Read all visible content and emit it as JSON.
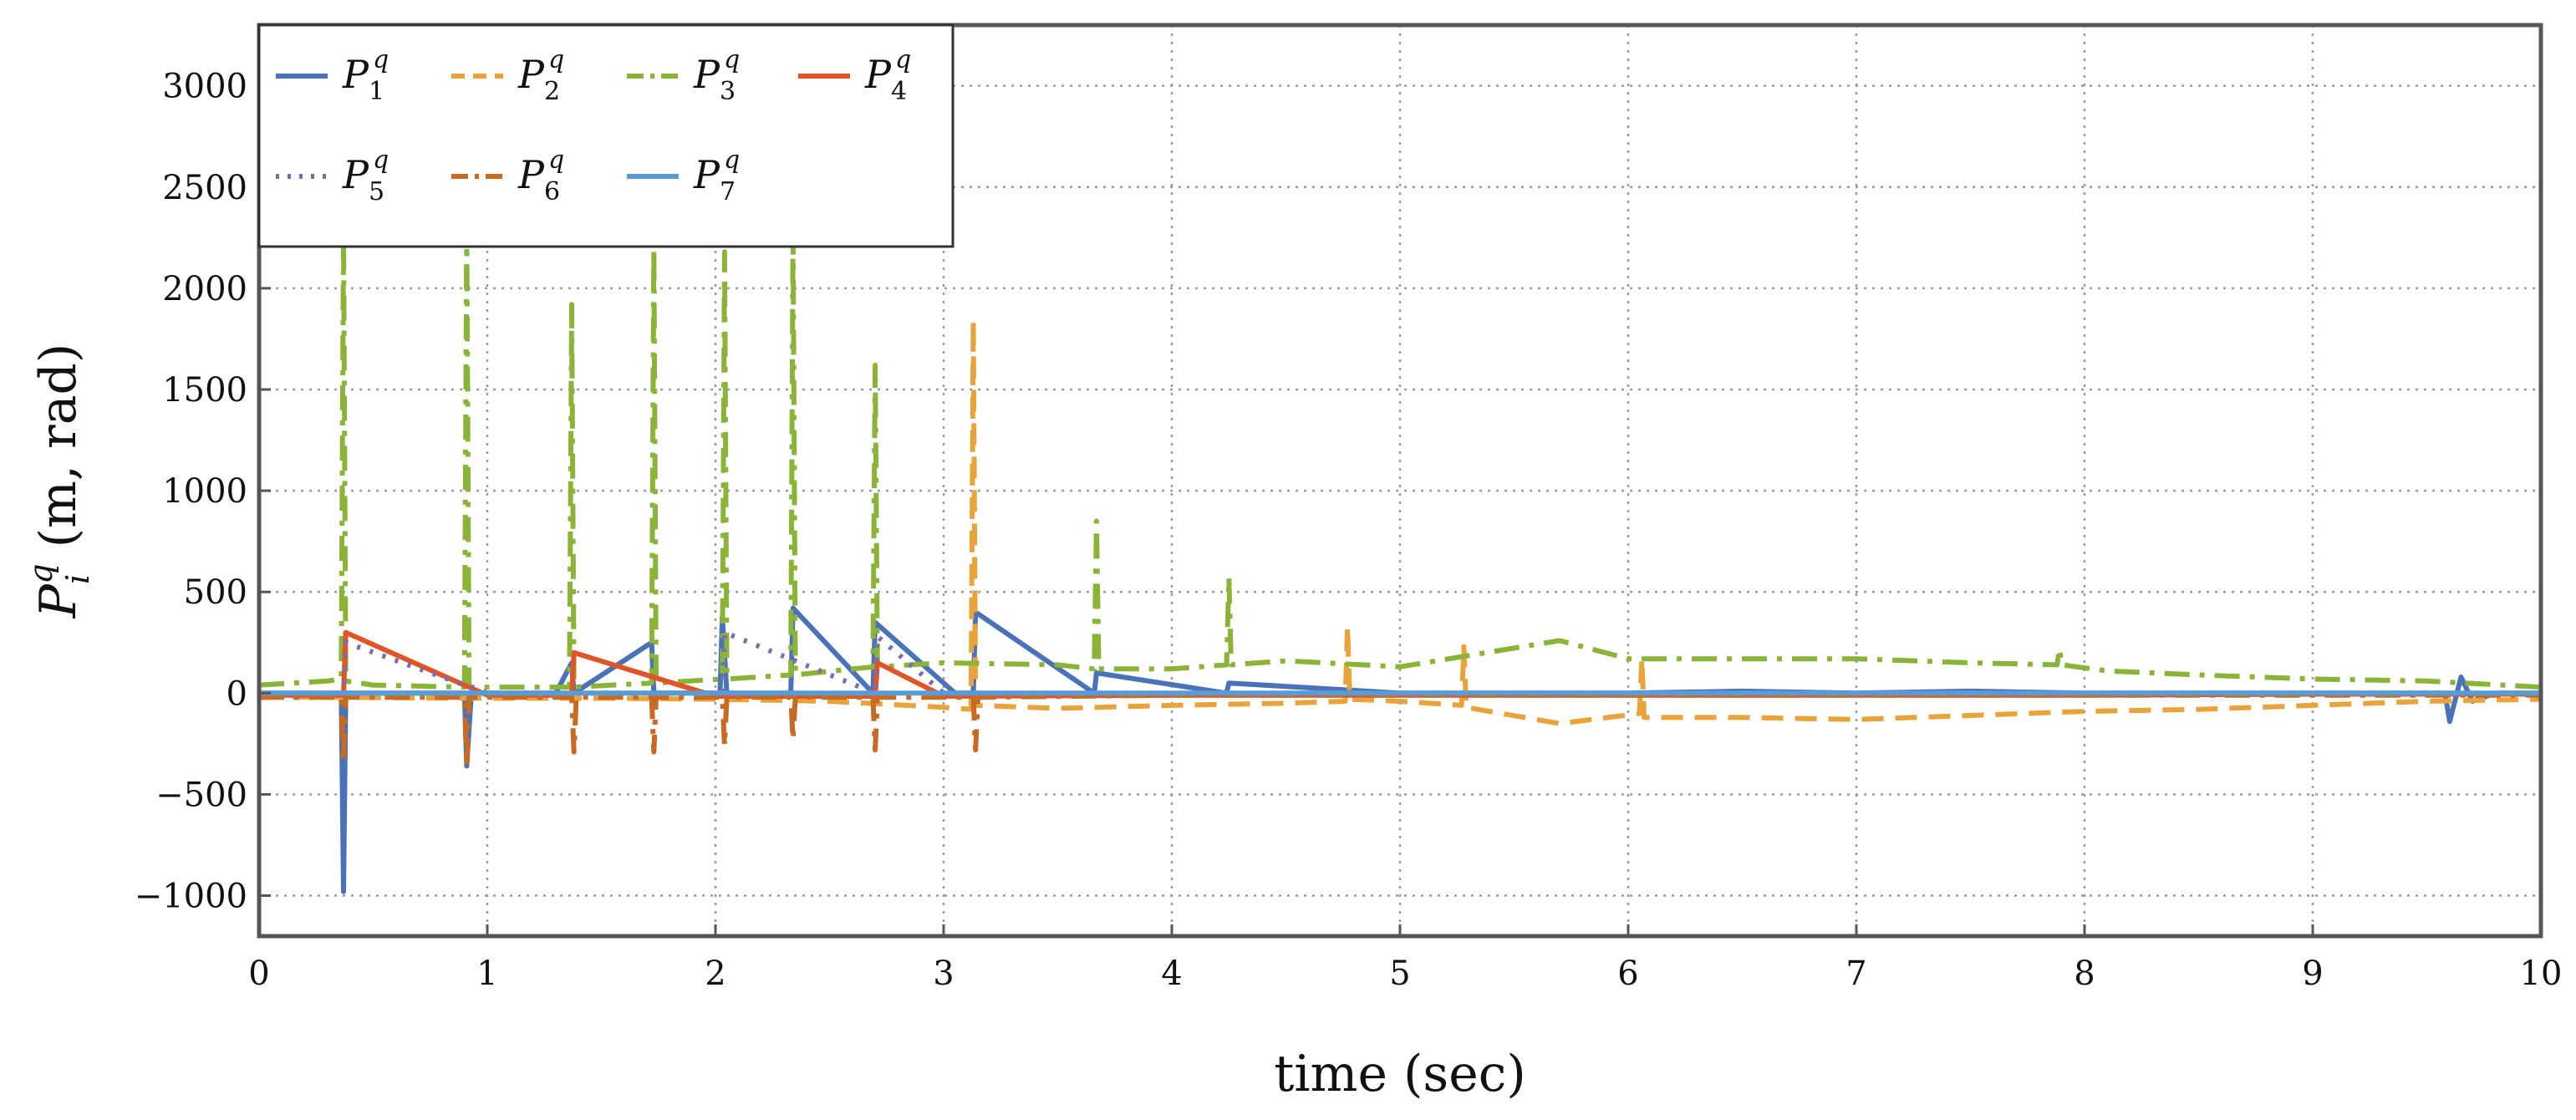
{
  "chart_data": {
    "type": "line",
    "title": "",
    "xlabel": "time (sec)",
    "ylabel": "P_i^q (m, rad)",
    "xlim": [
      0,
      10
    ],
    "ylim": [
      -1200,
      3300
    ],
    "xticks": [
      0,
      1,
      2,
      3,
      4,
      5,
      6,
      7,
      8,
      9,
      10
    ],
    "yticks": [
      -1000,
      -500,
      0,
      500,
      1000,
      1500,
      2000,
      2500,
      3000
    ],
    "ytick_labels": [
      "−1000",
      "−500",
      "0",
      "500",
      "1000",
      "1500",
      "2000",
      "2500",
      "3000"
    ],
    "grid": true,
    "legend_position": "top-left",
    "series": [
      {
        "name": "P_1^q",
        "color": "#4a72b8",
        "dash": "solid",
        "x": [
          0,
          0.33,
          0.36,
          0.37,
          0.38,
          0.41,
          0.8,
          0.9,
          0.91,
          0.93,
          1.3,
          1.37,
          1.38,
          1.72,
          1.73,
          2.02,
          2.03,
          2.05,
          2.33,
          2.34,
          2.69,
          2.7,
          3.05,
          3.13,
          3.14,
          3.66,
          3.67,
          4.24,
          4.25,
          5.0,
          6.0,
          6.5,
          7.0,
          7.5,
          8.0,
          8.5,
          9.0,
          9.5,
          9.55,
          9.58,
          9.6,
          9.65,
          9.7,
          9.8,
          10
        ],
        "y": [
          0,
          0,
          0,
          -980,
          0,
          0,
          0,
          0,
          -360,
          0,
          0,
          150,
          0,
          250,
          0,
          0,
          380,
          0,
          0,
          420,
          0,
          350,
          0,
          0,
          400,
          0,
          100,
          0,
          50,
          0,
          0,
          10,
          0,
          10,
          0,
          0,
          0,
          0,
          0,
          0,
          -140,
          80,
          -40,
          0,
          0
        ]
      },
      {
        "name": "P_2^q",
        "color": "#e8a33a",
        "dash": "dashed",
        "x": [
          0,
          0.3,
          0.9,
          1.5,
          2.0,
          2.5,
          3.0,
          3.12,
          3.13,
          3.14,
          3.5,
          4.0,
          4.5,
          4.76,
          4.77,
          4.78,
          5.0,
          5.27,
          5.28,
          5.29,
          5.7,
          6.05,
          6.06,
          6.07,
          6.5,
          7.0,
          7.5,
          8.0,
          8.5,
          9.0,
          9.5,
          10
        ],
        "y": [
          -20,
          -20,
          -25,
          -25,
          -30,
          -40,
          -70,
          -80,
          1840,
          -60,
          -75,
          -60,
          -50,
          -40,
          330,
          -30,
          -40,
          -60,
          230,
          -70,
          -150,
          -100,
          170,
          -120,
          -120,
          -130,
          -110,
          -90,
          -80,
          -60,
          -40,
          -30
        ]
      },
      {
        "name": "P_3^q",
        "color": "#8ab437",
        "dash": "dashdot",
        "x": [
          0,
          0.3,
          0.36,
          0.37,
          0.38,
          0.5,
          0.9,
          0.91,
          0.92,
          1.36,
          1.37,
          1.38,
          1.72,
          1.73,
          1.74,
          2.03,
          2.04,
          2.05,
          2.33,
          2.34,
          2.35,
          2.69,
          2.7,
          2.71,
          3.0,
          3.5,
          3.66,
          3.67,
          3.68,
          4.0,
          4.24,
          4.25,
          4.26,
          4.5,
          5.0,
          5.7,
          6.0,
          6.5,
          7.0,
          7.5,
          7.88,
          7.89,
          7.9,
          8.1,
          8.5,
          9.0,
          9.5,
          10
        ],
        "y": [
          40,
          60,
          70,
          2300,
          60,
          40,
          30,
          2300,
          30,
          30,
          1920,
          30,
          50,
          2200,
          50,
          70,
          2180,
          70,
          90,
          2280,
          90,
          130,
          1620,
          130,
          150,
          140,
          120,
          850,
          120,
          120,
          140,
          570,
          140,
          160,
          130,
          260,
          170,
          170,
          170,
          150,
          140,
          220,
          140,
          110,
          90,
          70,
          60,
          30
        ]
      },
      {
        "name": "P_4^q",
        "color": "#e0542a",
        "dash": "solid",
        "x": [
          0,
          0.37,
          0.38,
          1.0,
          1.37,
          1.38,
          2.0,
          2.7,
          2.71,
          3.0,
          4.0,
          5.0,
          6.0,
          7.0,
          8.0,
          9.0,
          10
        ],
        "y": [
          -10,
          -10,
          300,
          -10,
          -10,
          200,
          -15,
          -15,
          150,
          -15,
          -10,
          -10,
          -10,
          -10,
          -10,
          -5,
          -5
        ]
      },
      {
        "name": "P_5^q",
        "color": "#7b6bb0",
        "dash": "dotted",
        "x": [
          0,
          0.37,
          0.38,
          1.0,
          2.03,
          2.04,
          2.7,
          2.71,
          3.0,
          4.0,
          5.0,
          6.0,
          7.0,
          8.0,
          9.0,
          10
        ],
        "y": [
          0,
          0,
          250,
          0,
          0,
          300,
          0,
          280,
          0,
          0,
          0,
          0,
          0,
          0,
          0,
          0
        ]
      },
      {
        "name": "P_6^q",
        "color": "#c86a22",
        "dash": "dashdot",
        "x": [
          0,
          0.36,
          0.37,
          0.38,
          0.9,
          0.91,
          0.92,
          1.37,
          1.38,
          1.39,
          1.72,
          1.73,
          1.74,
          2.03,
          2.04,
          2.05,
          2.33,
          2.34,
          2.35,
          2.69,
          2.7,
          2.71,
          3.13,
          3.14,
          3.15,
          4.0,
          5.0,
          6.0,
          7.0,
          8.0,
          9.0,
          10
        ],
        "y": [
          -20,
          -20,
          -340,
          -20,
          -20,
          -360,
          -20,
          -20,
          -290,
          -20,
          -20,
          -290,
          -20,
          -20,
          -260,
          -20,
          -20,
          -230,
          -20,
          -20,
          -280,
          -20,
          -20,
          -280,
          -20,
          -10,
          -10,
          -10,
          -10,
          -10,
          -10,
          -10
        ]
      },
      {
        "name": "P_7^q",
        "color": "#5b9bd5",
        "dash": "solid",
        "x": [
          0,
          1,
          2,
          3,
          4,
          5,
          6,
          7,
          8,
          9,
          10
        ],
        "y": [
          0,
          0,
          0,
          0,
          0,
          0,
          0,
          0,
          0,
          0,
          0
        ]
      }
    ]
  },
  "legend": {
    "items": [
      {
        "base": "P",
        "sub": "1",
        "sup": "q"
      },
      {
        "base": "P",
        "sub": "2",
        "sup": "q"
      },
      {
        "base": "P",
        "sub": "3",
        "sup": "q"
      },
      {
        "base": "P",
        "sub": "4",
        "sup": "q"
      },
      {
        "base": "P",
        "sub": "5",
        "sup": "q"
      },
      {
        "base": "P",
        "sub": "6",
        "sup": "q"
      },
      {
        "base": "P",
        "sub": "7",
        "sup": "q"
      }
    ]
  },
  "axes": {
    "ylabel_base": "P",
    "ylabel_sub": "i",
    "ylabel_sup": "q",
    "ylabel_units": " (m, rad)"
  }
}
